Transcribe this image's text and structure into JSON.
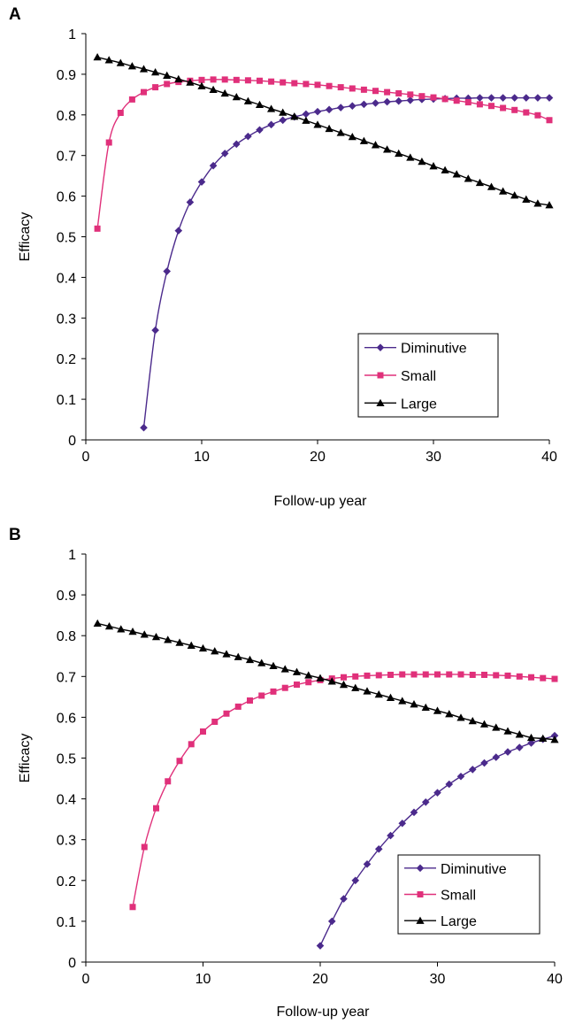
{
  "colors": {
    "diminutive": "#4B2A8C",
    "small": "#E0307A",
    "large": "#000000"
  },
  "chart_data": [
    {
      "panel_label": "A",
      "type": "line",
      "xlabel": "Follow-up year",
      "ylabel": "Efficacy",
      "xlim": [
        0,
        40
      ],
      "ylim": [
        0,
        1
      ],
      "xticks": [
        0,
        10,
        20,
        30,
        40
      ],
      "yticks": [
        "0",
        "0.1",
        "0.2",
        "0.3",
        "0.4",
        "0.5",
        "0.6",
        "0.7",
        "0.8",
        "0.9",
        "1"
      ],
      "grid": false,
      "legend": "bottom-right",
      "series": [
        {
          "name": "Diminutive",
          "marker": "diamond",
          "x": [
            5,
            6,
            7,
            8,
            9,
            10,
            11,
            12,
            13,
            14,
            15,
            16,
            17,
            18,
            19,
            20,
            21,
            22,
            23,
            24,
            25,
            26,
            27,
            28,
            29,
            30,
            31,
            32,
            33,
            34,
            35,
            36,
            37,
            38,
            39,
            40
          ],
          "y": [
            0.03,
            0.27,
            0.415,
            0.515,
            0.585,
            0.635,
            0.675,
            0.705,
            0.728,
            0.747,
            0.763,
            0.776,
            0.787,
            0.795,
            0.802,
            0.808,
            0.813,
            0.818,
            0.822,
            0.826,
            0.829,
            0.832,
            0.834,
            0.836,
            0.838,
            0.839,
            0.84,
            0.841,
            0.841,
            0.842,
            0.842,
            0.842,
            0.842,
            0.842,
            0.842,
            0.842
          ]
        },
        {
          "name": "Small",
          "marker": "square",
          "x": [
            1,
            2,
            3,
            4,
            5,
            6,
            7,
            8,
            9,
            10,
            11,
            12,
            13,
            14,
            15,
            16,
            17,
            18,
            19,
            20,
            21,
            22,
            23,
            24,
            25,
            26,
            27,
            28,
            29,
            30,
            31,
            32,
            33,
            34,
            35,
            36,
            37,
            38,
            39,
            40
          ],
          "y": [
            0.52,
            0.732,
            0.805,
            0.838,
            0.856,
            0.868,
            0.876,
            0.881,
            0.884,
            0.886,
            0.887,
            0.887,
            0.886,
            0.885,
            0.884,
            0.882,
            0.88,
            0.878,
            0.876,
            0.874,
            0.871,
            0.868,
            0.865,
            0.862,
            0.859,
            0.856,
            0.853,
            0.85,
            0.846,
            0.843,
            0.839,
            0.835,
            0.831,
            0.826,
            0.822,
            0.817,
            0.812,
            0.806,
            0.799,
            0.787
          ]
        },
        {
          "name": "Large",
          "marker": "triangle",
          "x": [
            1,
            2,
            3,
            4,
            5,
            6,
            7,
            8,
            9,
            10,
            11,
            12,
            13,
            14,
            15,
            16,
            17,
            18,
            19,
            20,
            21,
            22,
            23,
            24,
            25,
            26,
            27,
            28,
            29,
            30,
            31,
            32,
            33,
            34,
            35,
            36,
            37,
            38,
            39,
            40
          ],
          "y": [
            0.942,
            0.935,
            0.928,
            0.92,
            0.913,
            0.905,
            0.897,
            0.888,
            0.88,
            0.871,
            0.862,
            0.853,
            0.844,
            0.834,
            0.825,
            0.815,
            0.806,
            0.796,
            0.786,
            0.776,
            0.766,
            0.756,
            0.746,
            0.736,
            0.726,
            0.715,
            0.705,
            0.695,
            0.685,
            0.674,
            0.664,
            0.654,
            0.643,
            0.633,
            0.623,
            0.612,
            0.602,
            0.592,
            0.582,
            0.578
          ]
        }
      ]
    },
    {
      "panel_label": "B",
      "type": "line",
      "xlabel": "Follow-up year",
      "ylabel": "Efficacy",
      "xlim": [
        0,
        40
      ],
      "ylim": [
        0,
        1
      ],
      "xticks": [
        0,
        10,
        20,
        30,
        40
      ],
      "yticks": [
        "0",
        "0.1",
        "0.2",
        "0.3",
        "0.4",
        "0.5",
        "0.6",
        "0.7",
        "0.8",
        "0.9",
        "1"
      ],
      "grid": false,
      "legend": "bottom-right",
      "series": [
        {
          "name": "Diminutive",
          "marker": "diamond",
          "x": [
            20,
            21,
            22,
            23,
            24,
            25,
            26,
            27,
            28,
            29,
            30,
            31,
            32,
            33,
            34,
            35,
            36,
            37,
            38,
            39,
            40
          ],
          "y": [
            0.04,
            0.1,
            0.155,
            0.2,
            0.24,
            0.277,
            0.31,
            0.34,
            0.367,
            0.392,
            0.415,
            0.436,
            0.455,
            0.472,
            0.488,
            0.502,
            0.515,
            0.526,
            0.537,
            0.546,
            0.555
          ]
        },
        {
          "name": "Small",
          "marker": "square",
          "x": [
            4,
            5,
            6,
            7,
            8,
            9,
            10,
            11,
            12,
            13,
            14,
            15,
            16,
            17,
            18,
            19,
            20,
            21,
            22,
            23,
            24,
            25,
            26,
            27,
            28,
            29,
            30,
            31,
            32,
            33,
            34,
            35,
            36,
            37,
            38,
            39,
            40
          ],
          "y": [
            0.135,
            0.282,
            0.377,
            0.443,
            0.493,
            0.534,
            0.565,
            0.589,
            0.609,
            0.626,
            0.641,
            0.653,
            0.663,
            0.672,
            0.68,
            0.686,
            0.691,
            0.695,
            0.698,
            0.7,
            0.702,
            0.703,
            0.704,
            0.705,
            0.705,
            0.705,
            0.705,
            0.705,
            0.705,
            0.704,
            0.704,
            0.703,
            0.702,
            0.7,
            0.698,
            0.696,
            0.694
          ]
        },
        {
          "name": "Large",
          "marker": "triangle",
          "x": [
            1,
            2,
            3,
            4,
            5,
            6,
            7,
            8,
            9,
            10,
            11,
            12,
            13,
            14,
            15,
            16,
            17,
            18,
            19,
            20,
            21,
            22,
            23,
            24,
            25,
            26,
            27,
            28,
            29,
            30,
            31,
            32,
            33,
            34,
            35,
            36,
            37,
            38,
            39,
            40
          ],
          "y": [
            0.83,
            0.823,
            0.816,
            0.81,
            0.803,
            0.797,
            0.79,
            0.783,
            0.776,
            0.769,
            0.762,
            0.755,
            0.748,
            0.741,
            0.733,
            0.726,
            0.718,
            0.711,
            0.703,
            0.696,
            0.688,
            0.68,
            0.672,
            0.664,
            0.656,
            0.648,
            0.64,
            0.632,
            0.624,
            0.616,
            0.608,
            0.599,
            0.591,
            0.583,
            0.575,
            0.566,
            0.558,
            0.55,
            0.548,
            0.545
          ]
        }
      ]
    }
  ]
}
